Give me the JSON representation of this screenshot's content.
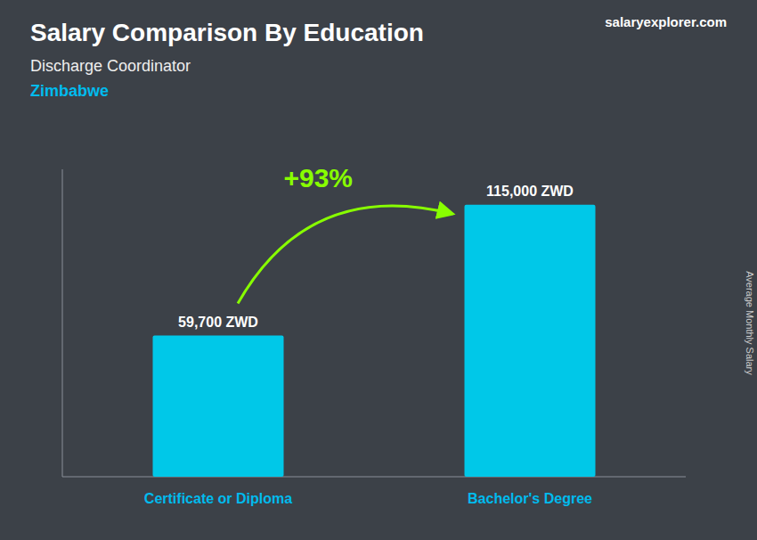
{
  "chart_data": {
    "type": "bar",
    "title": "Salary Comparison By Education",
    "subtitle": "Discharge Coordinator",
    "y_label": "Average Monthly Salary",
    "annotations": [
      {
        "text": "Zimbabwe",
        "color": "#00bbee"
      },
      {
        "text": "+93%",
        "color": "#88ff00"
      },
      {
        "text": "salaryexplorer.com",
        "color": "#ffffff"
      }
    ],
    "categories": [
      "Certificate or Diploma",
      "Bachelor's Degree"
    ],
    "values": [
      59700,
      115000
    ],
    "value_labels": [
      "59,700 ZWD",
      "115,000 ZWD"
    ],
    "data_labels": true,
    "color": "#00c8e8",
    "ylim": [
      0,
      130000
    ],
    "grid": false,
    "tick_labels": false
  }
}
